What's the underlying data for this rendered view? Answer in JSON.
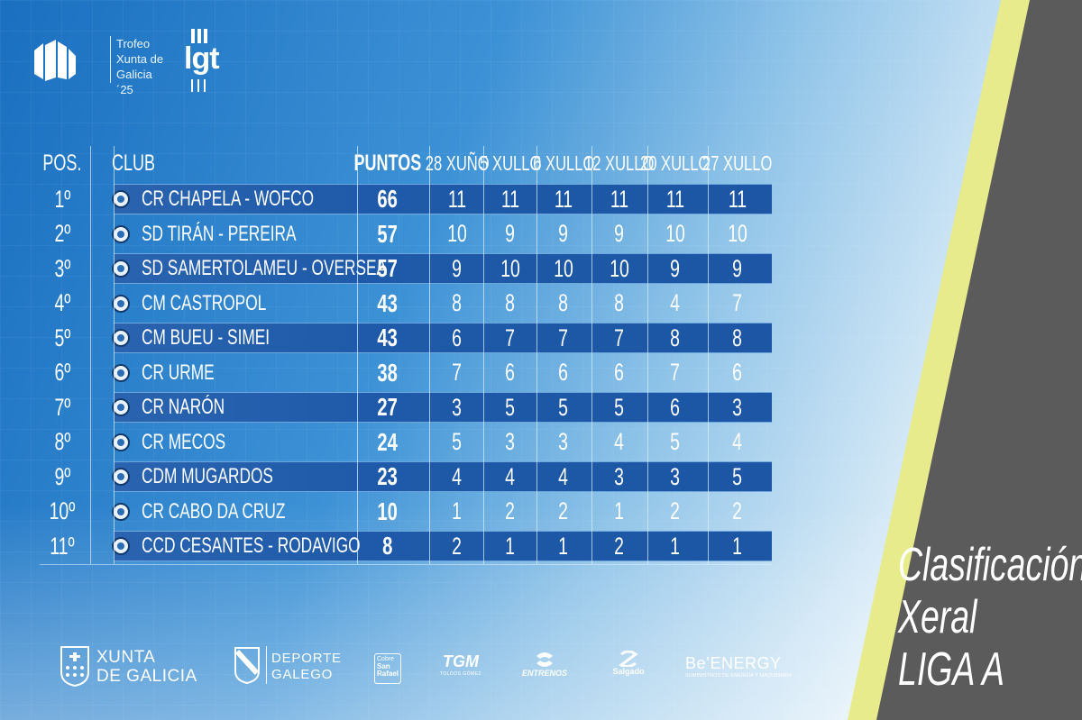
{
  "header": {
    "trofeo_lines": [
      "Trofeo",
      "Xunta de",
      "Galicia ´25"
    ],
    "igt_logo_word": "lgt"
  },
  "table": {
    "columns": {
      "pos": "POS.",
      "club": "CLUB",
      "points": "PUNTOS",
      "regattas": [
        "28 XUÑO",
        "5 XULLO",
        "6 XULLO",
        "12 XULLO",
        "20 XULLO",
        "27 XULLO"
      ]
    },
    "rows": [
      {
        "pos": "1º",
        "club": "CR CHAPELA - WOFCO",
        "points": "66",
        "results": [
          "11",
          "11",
          "11",
          "11",
          "11",
          "11"
        ],
        "crest": "chapela-crest-icon"
      },
      {
        "pos": "2º",
        "club": "SD TIRÁN - PEREIRA",
        "points": "57",
        "results": [
          "10",
          "9",
          "9",
          "9",
          "10",
          "10"
        ],
        "crest": "tiran-crest-icon"
      },
      {
        "pos": "3º",
        "club": "SD SAMERTOLAMEU - OVERSEA",
        "points": "57",
        "results": [
          "9",
          "10",
          "10",
          "10",
          "9",
          "9"
        ],
        "crest": "samertolameu-crest-icon"
      },
      {
        "pos": "4º",
        "club": "CM CASTROPOL",
        "points": "43",
        "results": [
          "8",
          "8",
          "8",
          "8",
          "4",
          "7"
        ],
        "crest": "castropol-crest-icon"
      },
      {
        "pos": "5º",
        "club": "CM BUEU - SIMEI",
        "points": "43",
        "results": [
          "6",
          "7",
          "7",
          "7",
          "8",
          "8"
        ],
        "crest": "bueu-crest-icon"
      },
      {
        "pos": "6º",
        "club": "CR URME",
        "points": "38",
        "results": [
          "7",
          "6",
          "6",
          "6",
          "7",
          "6"
        ],
        "crest": "urme-crest-icon"
      },
      {
        "pos": "7º",
        "club": "CR NARÓN",
        "points": "27",
        "results": [
          "3",
          "5",
          "5",
          "5",
          "6",
          "3"
        ],
        "crest": "naron-crest-icon"
      },
      {
        "pos": "8º",
        "club": "CR MECOS",
        "points": "24",
        "results": [
          "5",
          "3",
          "3",
          "4",
          "5",
          "4"
        ],
        "crest": "mecos-crest-icon"
      },
      {
        "pos": "9º",
        "club": "CDM MUGARDOS",
        "points": "23",
        "results": [
          "4",
          "4",
          "4",
          "3",
          "3",
          "5"
        ],
        "crest": "mugardos-crest-icon"
      },
      {
        "pos": "10º",
        "club": "CR CABO DA CRUZ",
        "points": "10",
        "results": [
          "1",
          "2",
          "2",
          "1",
          "2",
          "2"
        ],
        "crest": "cabo-da-cruz-crest-icon"
      },
      {
        "pos": "11º",
        "club": "CCD CESANTES - RODAVIGO",
        "points": "8",
        "results": [
          "2",
          "1",
          "1",
          "2",
          "1",
          "1"
        ],
        "crest": "cesantes-crest-icon"
      }
    ]
  },
  "title": {
    "lines": [
      "Clasificación",
      "Xeral",
      "LIGA A"
    ]
  },
  "sponsors": {
    "xunta": [
      "XUNTA",
      "DE GALICIA"
    ],
    "deporte": [
      "DEPORTE",
      "GALEGO"
    ],
    "sanrafael": [
      "Cobre",
      "San",
      "Rafael"
    ],
    "toldos": {
      "mark": "TGM",
      "sub": "TOLDOS GÓMEZ"
    },
    "entrenos": "ENTRENOS",
    "salgado": "Salgado",
    "beenergy": {
      "name": "Be’ENERGY",
      "sub": "SUMINISTROS DE ENERGÍA Y MAQUINARIA"
    }
  },
  "colors": {
    "bg_left": "#1a6fc0",
    "bg_mid": "#4a9fdc",
    "bg_right": "#cfe6f4",
    "row_dark": "#1e5aa9",
    "panel_gray": "#5b5b5b",
    "panel_accent": "#e7eb8c"
  }
}
